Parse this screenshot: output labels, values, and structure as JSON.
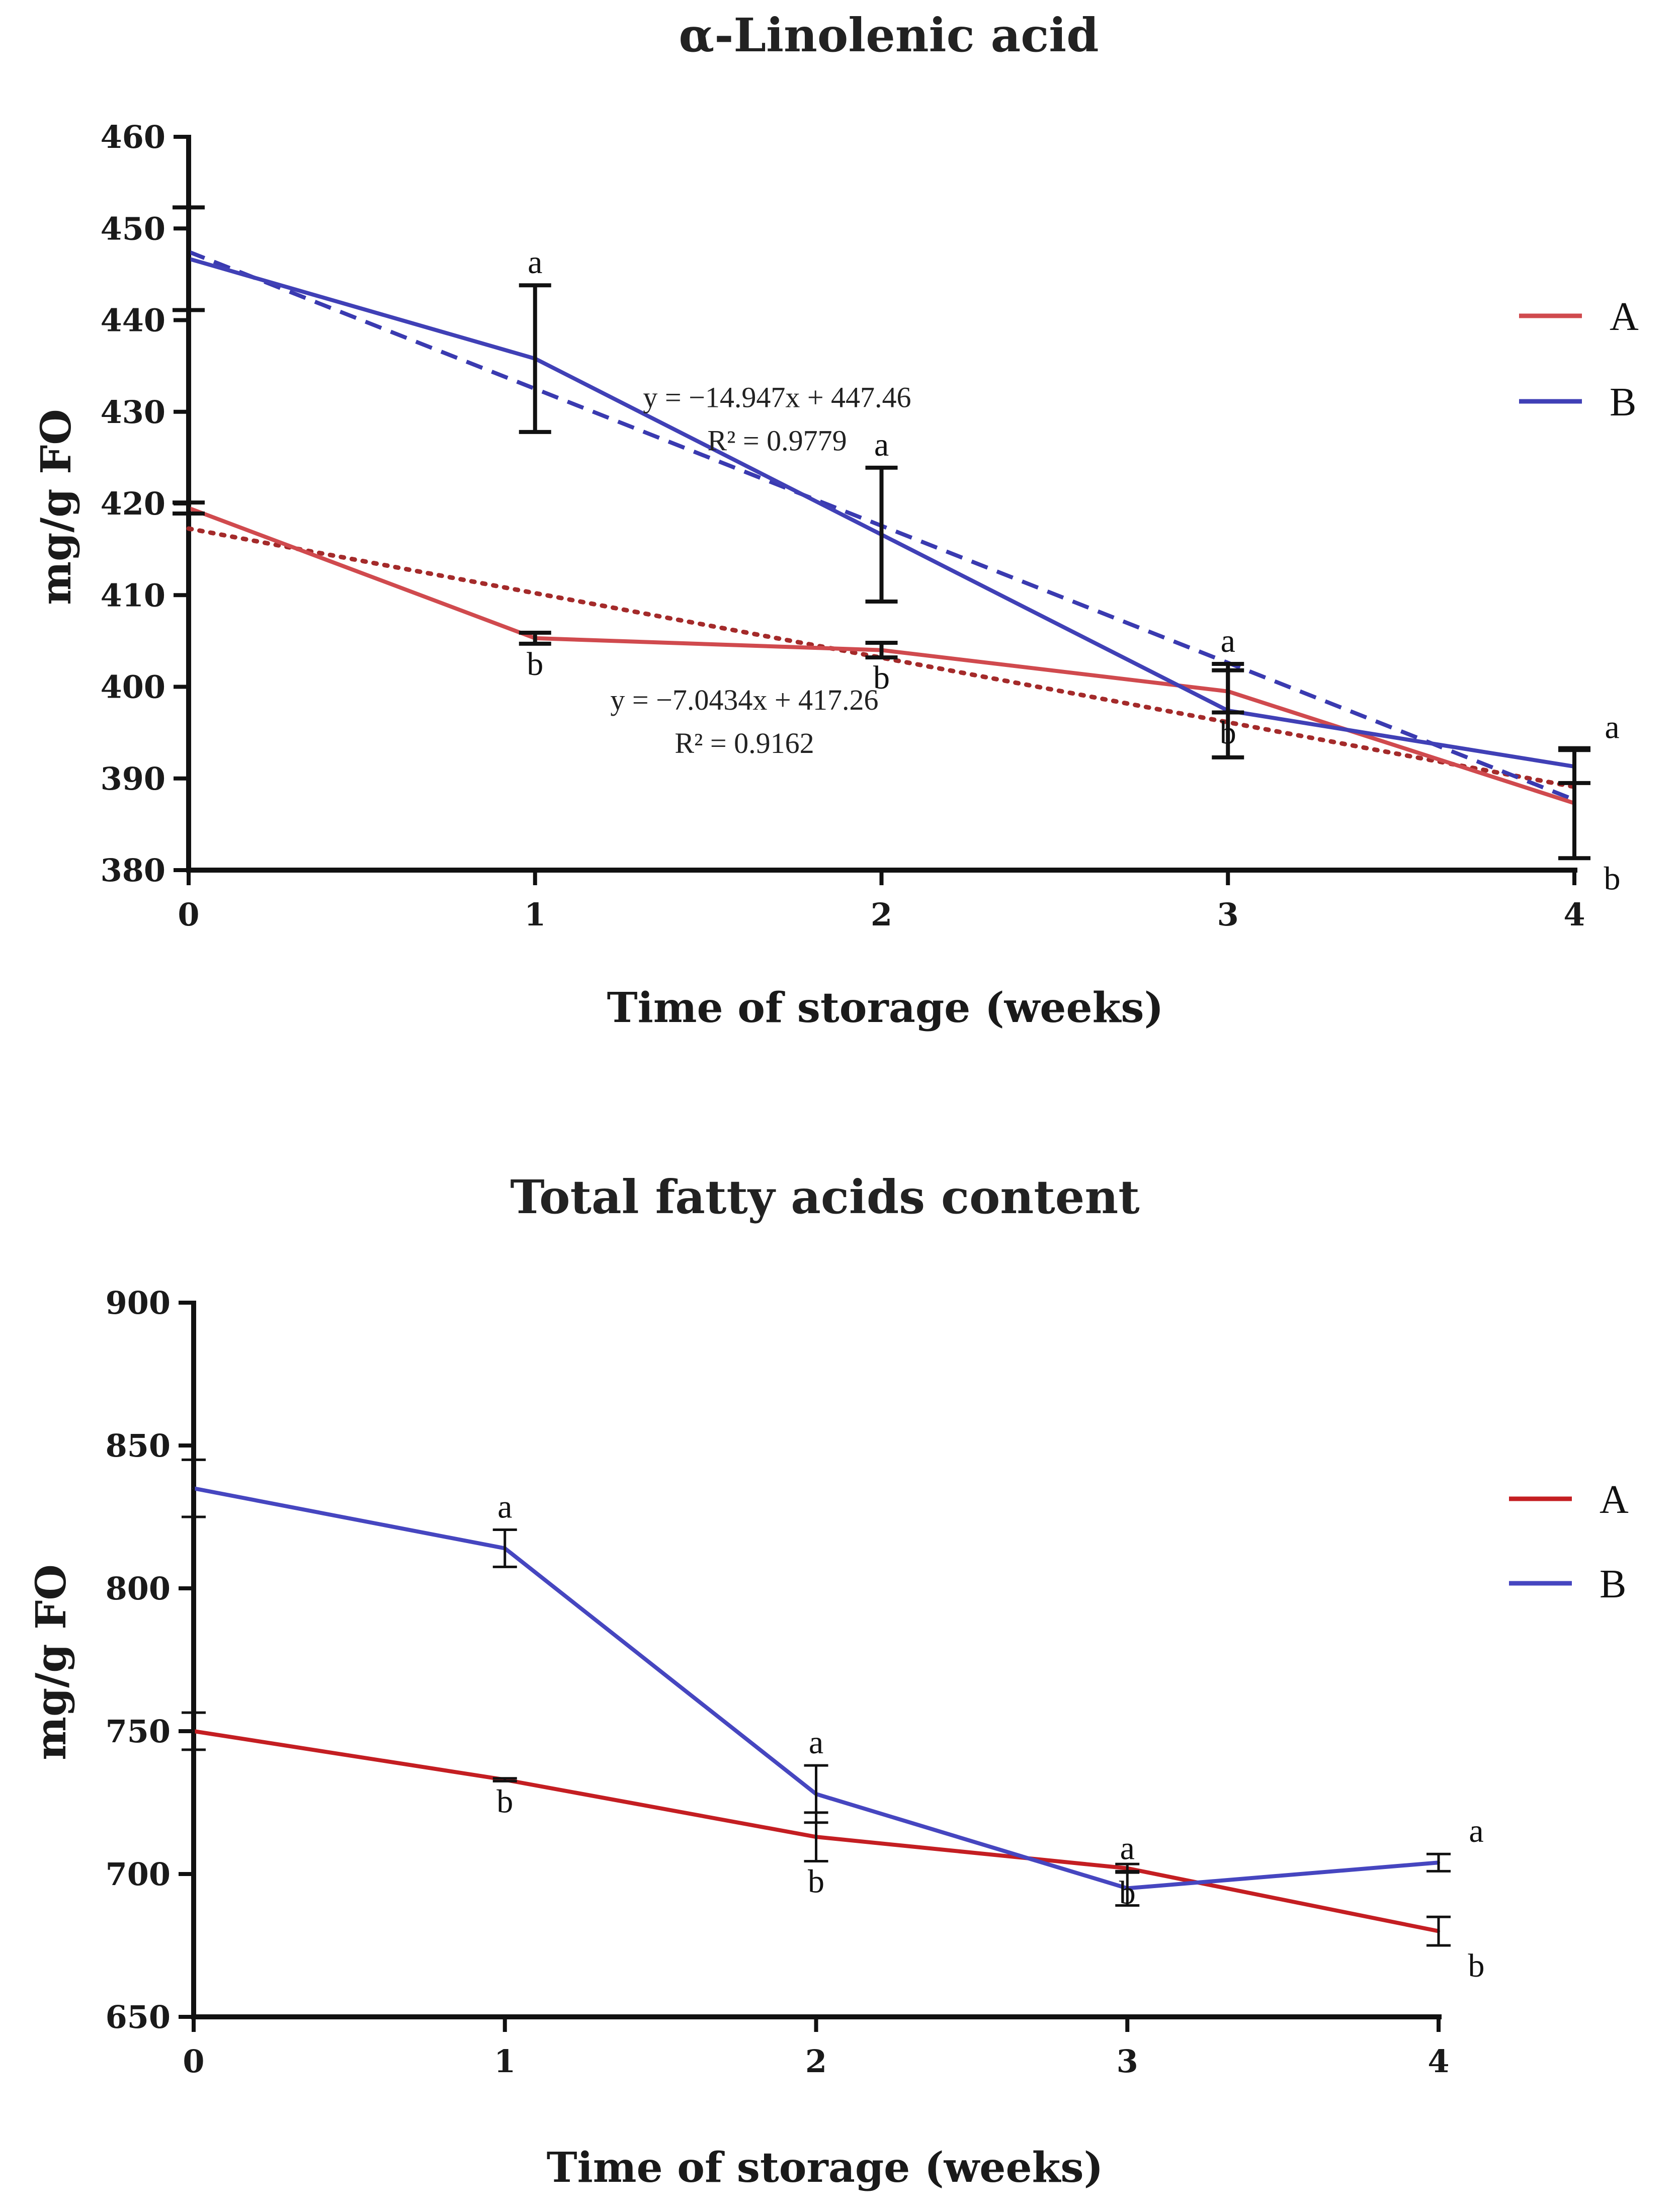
{
  "chart_data": [
    {
      "type": "line",
      "title": "α-Linolenic acid",
      "xlabel": "Time of storage (weeks)",
      "ylabel": "mg/g FO",
      "x": [
        0,
        1,
        2,
        3,
        4
      ],
      "xlim": [
        0,
        4
      ],
      "ylim": [
        380,
        460
      ],
      "yticks": [
        380,
        390,
        400,
        410,
        420,
        430,
        440,
        450,
        460
      ],
      "xticks": [
        0,
        1,
        2,
        3,
        4
      ],
      "legend_position": "right",
      "series": [
        {
          "name": "A",
          "color": "#d04a4e",
          "values": [
            419.5,
            405.3,
            404.0,
            399.5,
            387.3
          ],
          "errors": [
            0.6,
            0.6,
            0.8,
            2.3,
            6.0
          ],
          "labels": [
            "",
            "b",
            "b",
            "b",
            "b"
          ],
          "trendline": {
            "slope": -7.0434,
            "intercept": 417.26,
            "style": "dotted",
            "color": "#a42a2a",
            "equation": "y = −7.0434x + 417.26",
            "r2": "R² = 0.9162"
          }
        },
        {
          "name": "B",
          "color": "#4040b6",
          "values": [
            446.7,
            435.8,
            416.6,
            397.4,
            391.3
          ],
          "errors": [
            5.6,
            8.0,
            7.3,
            5.1,
            1.8
          ],
          "labels": [
            "",
            "a",
            "a",
            "a",
            "a"
          ],
          "trendline": {
            "slope": -14.947,
            "intercept": 447.46,
            "style": "dashed",
            "color": "#3a3ab0",
            "equation": "y = −14.947x + 447.46",
            "r2": "R² = 0.9779"
          }
        }
      ]
    },
    {
      "type": "line",
      "title": "Total fatty acids content",
      "xlabel": "Time of storage (weeks)",
      "ylabel": "mg/g FO",
      "x": [
        0,
        1,
        2,
        3,
        4
      ],
      "xlim": [
        0,
        4
      ],
      "ylim": [
        650,
        900
      ],
      "yticks": [
        650,
        700,
        750,
        800,
        850,
        900
      ],
      "xticks": [
        0,
        1,
        2,
        3,
        4
      ],
      "legend_position": "right",
      "series": [
        {
          "name": "A",
          "color": "#c41e22",
          "values": [
            750,
            733,
            713,
            702,
            680
          ],
          "errors": [
            6.5,
            0.5,
            8.5,
            1.5,
            5
          ],
          "labels": [
            "",
            "b",
            "b",
            "b",
            "b"
          ]
        },
        {
          "name": "B",
          "color": "#4646c0",
          "values": [
            835,
            814,
            728,
            695,
            704
          ],
          "errors": [
            10,
            6.5,
            10,
            6,
            3
          ],
          "labels": [
            "",
            "a",
            "a",
            "a",
            "a"
          ]
        }
      ]
    }
  ]
}
